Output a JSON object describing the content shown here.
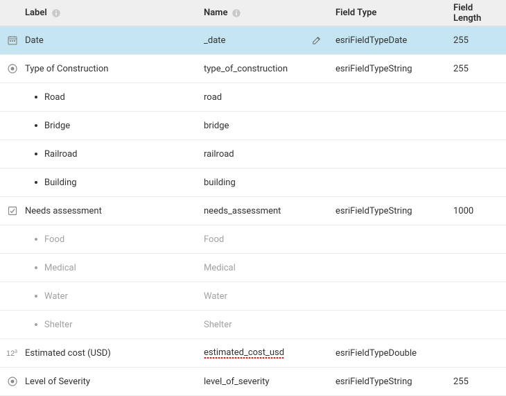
{
  "colors": {
    "header_bg": "#efefef",
    "row_border": "#eaeaea",
    "selected_bg": "#c5e5f2",
    "text": "#323232",
    "muted_text": "#a2a2a2",
    "icon": "#8a8a8a"
  },
  "columns": {
    "label": "Label",
    "name": "Name",
    "fieldType": "Field Type",
    "fieldLength": "Field Length"
  },
  "rows": [
    {
      "icon": "date",
      "label": "Date",
      "name": "_date",
      "fieldType": "esriFieldTypeDate",
      "fieldLength": "255",
      "selected": true,
      "editable": true
    },
    {
      "icon": "radio",
      "label": "Type of Construction",
      "name": "type_of_construction",
      "fieldType": "esriFieldTypeString",
      "fieldLength": "255",
      "children": [
        {
          "label": "Road",
          "name": "road"
        },
        {
          "label": "Bridge",
          "name": "bridge"
        },
        {
          "label": "Railroad",
          "name": "railroad"
        },
        {
          "label": "Building",
          "name": "building"
        }
      ]
    },
    {
      "icon": "checkbox",
      "label": "Needs assessment",
      "name": "needs_assessment",
      "fieldType": "esriFieldTypeString",
      "fieldLength": "1000",
      "children_muted": true,
      "children": [
        {
          "label": "Food",
          "name": "Food"
        },
        {
          "label": "Medical",
          "name": "Medical"
        },
        {
          "label": "Water",
          "name": "Water"
        },
        {
          "label": "Shelter",
          "name": "Shelter"
        }
      ]
    },
    {
      "icon": "number",
      "label": "Estimated cost (USD)",
      "name": "estimated_cost_usd",
      "name_error": true,
      "fieldType": "esriFieldTypeDouble",
      "fieldLength": ""
    },
    {
      "icon": "radio",
      "label": "Level of Severity",
      "name": "level_of_severity",
      "fieldType": "esriFieldTypeString",
      "fieldLength": "255"
    }
  ]
}
